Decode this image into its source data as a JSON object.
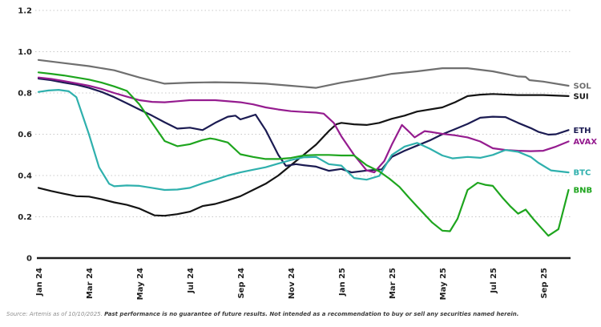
{
  "chart_data": {
    "type": "line",
    "title": "",
    "grid": "dotted-horizontal",
    "legend_position": "right-end-labels",
    "x_axis": {
      "unit": "month",
      "tick_labels": [
        "Jan 24",
        "Mar 24",
        "May 24",
        "Jul 24",
        "Sep 24",
        "Nov 24",
        "Jan 25",
        "Mar 25",
        "May 25",
        "Jul 25",
        "Sep 25"
      ],
      "tick_month_index": [
        0,
        2,
        4,
        6,
        8,
        10,
        12,
        14,
        16,
        18,
        20
      ]
    },
    "y_axis": {
      "tick_labels": [
        "1.2",
        "1.0",
        "0.8",
        "0.6",
        "0.4",
        "0.2",
        "0"
      ],
      "tick_values": [
        1.2,
        1.0,
        0.8,
        0.6,
        0.4,
        0.2,
        0
      ],
      "range": [
        0,
        1.2
      ]
    },
    "series": [
      {
        "name": "SOL",
        "color": "#6f6f6f",
        "points": [
          [
            0,
            0.96
          ],
          [
            1,
            0.945
          ],
          [
            2,
            0.93
          ],
          [
            3,
            0.91
          ],
          [
            4,
            0.875
          ],
          [
            5,
            0.845
          ],
          [
            6,
            0.85
          ],
          [
            7,
            0.852
          ],
          [
            8,
            0.85
          ],
          [
            9,
            0.845
          ],
          [
            10,
            0.835
          ],
          [
            11,
            0.825
          ],
          [
            12,
            0.85
          ],
          [
            13,
            0.87
          ],
          [
            14,
            0.893
          ],
          [
            15,
            0.905
          ],
          [
            16,
            0.92
          ],
          [
            17,
            0.92
          ],
          [
            18,
            0.905
          ],
          [
            19,
            0.88
          ],
          [
            19.3,
            0.878
          ],
          [
            19.45,
            0.862
          ],
          [
            20,
            0.855
          ],
          [
            21,
            0.835
          ]
        ]
      },
      {
        "name": "SUI",
        "color": "#141414",
        "points": [
          [
            0,
            0.34
          ],
          [
            0.5,
            0.325
          ],
          [
            1,
            0.312
          ],
          [
            1.5,
            0.3
          ],
          [
            2,
            0.298
          ],
          [
            2.5,
            0.285
          ],
          [
            3,
            0.27
          ],
          [
            3.5,
            0.258
          ],
          [
            4,
            0.24
          ],
          [
            4.6,
            0.207
          ],
          [
            5,
            0.205
          ],
          [
            5.5,
            0.213
          ],
          [
            6,
            0.225
          ],
          [
            6.5,
            0.252
          ],
          [
            7,
            0.262
          ],
          [
            7.5,
            0.28
          ],
          [
            8,
            0.3
          ],
          [
            8.5,
            0.33
          ],
          [
            9,
            0.36
          ],
          [
            9.5,
            0.4
          ],
          [
            10,
            0.45
          ],
          [
            10.5,
            0.5
          ],
          [
            11,
            0.55
          ],
          [
            11.5,
            0.615
          ],
          [
            11.8,
            0.648
          ],
          [
            12,
            0.655
          ],
          [
            12.5,
            0.648
          ],
          [
            13,
            0.645
          ],
          [
            13.5,
            0.655
          ],
          [
            14,
            0.675
          ],
          [
            14.5,
            0.69
          ],
          [
            15,
            0.71
          ],
          [
            16,
            0.73
          ],
          [
            16.5,
            0.755
          ],
          [
            17,
            0.785
          ],
          [
            17.5,
            0.792
          ],
          [
            18,
            0.795
          ],
          [
            19,
            0.79
          ],
          [
            20,
            0.79
          ],
          [
            21,
            0.785
          ]
        ]
      },
      {
        "name": "ETH",
        "color": "#1b1b52",
        "points": [
          [
            0,
            0.87
          ],
          [
            0.5,
            0.862
          ],
          [
            1,
            0.85
          ],
          [
            1.5,
            0.84
          ],
          [
            2,
            0.825
          ],
          [
            2.5,
            0.805
          ],
          [
            3,
            0.78
          ],
          [
            3.5,
            0.75
          ],
          [
            4,
            0.72
          ],
          [
            4.5,
            0.69
          ],
          [
            5,
            0.658
          ],
          [
            5.5,
            0.627
          ],
          [
            6,
            0.632
          ],
          [
            6.5,
            0.62
          ],
          [
            7,
            0.655
          ],
          [
            7.5,
            0.685
          ],
          [
            7.8,
            0.69
          ],
          [
            8,
            0.672
          ],
          [
            8.3,
            0.683
          ],
          [
            8.6,
            0.695
          ],
          [
            9,
            0.62
          ],
          [
            9.5,
            0.5
          ],
          [
            9.8,
            0.447
          ],
          [
            10.2,
            0.455
          ],
          [
            10.5,
            0.45
          ],
          [
            11,
            0.443
          ],
          [
            11.5,
            0.423
          ],
          [
            12,
            0.432
          ],
          [
            12.4,
            0.415
          ],
          [
            13,
            0.424
          ],
          [
            13.6,
            0.43
          ],
          [
            14,
            0.49
          ],
          [
            14.5,
            0.52
          ],
          [
            15,
            0.545
          ],
          [
            15.5,
            0.57
          ],
          [
            16,
            0.6
          ],
          [
            16.5,
            0.625
          ],
          [
            17,
            0.65
          ],
          [
            17.5,
            0.68
          ],
          [
            18,
            0.685
          ],
          [
            18.5,
            0.683
          ],
          [
            19,
            0.655
          ],
          [
            19.5,
            0.63
          ],
          [
            19.8,
            0.612
          ],
          [
            20.2,
            0.598
          ],
          [
            20.5,
            0.6
          ],
          [
            21,
            0.62
          ]
        ]
      },
      {
        "name": "AVAX",
        "color": "#951c8f",
        "points": [
          [
            0,
            0.875
          ],
          [
            0.5,
            0.868
          ],
          [
            1,
            0.858
          ],
          [
            1.5,
            0.847
          ],
          [
            2,
            0.835
          ],
          [
            2.5,
            0.82
          ],
          [
            3,
            0.8
          ],
          [
            3.5,
            0.782
          ],
          [
            4,
            0.765
          ],
          [
            4.5,
            0.757
          ],
          [
            5,
            0.755
          ],
          [
            5.5,
            0.76
          ],
          [
            6,
            0.765
          ],
          [
            7,
            0.765
          ],
          [
            8,
            0.755
          ],
          [
            8.5,
            0.745
          ],
          [
            9,
            0.73
          ],
          [
            9.5,
            0.72
          ],
          [
            10,
            0.712
          ],
          [
            10.5,
            0.708
          ],
          [
            11,
            0.705
          ],
          [
            11.3,
            0.7
          ],
          [
            11.7,
            0.655
          ],
          [
            12,
            0.59
          ],
          [
            12.5,
            0.5
          ],
          [
            13,
            0.425
          ],
          [
            13.3,
            0.415
          ],
          [
            13.7,
            0.47
          ],
          [
            14,
            0.55
          ],
          [
            14.4,
            0.645
          ],
          [
            14.7,
            0.61
          ],
          [
            14.9,
            0.585
          ],
          [
            15.3,
            0.615
          ],
          [
            15.6,
            0.61
          ],
          [
            16,
            0.602
          ],
          [
            16.5,
            0.595
          ],
          [
            17,
            0.585
          ],
          [
            17.5,
            0.565
          ],
          [
            18,
            0.532
          ],
          [
            18.5,
            0.524
          ],
          [
            19,
            0.52
          ],
          [
            19.5,
            0.518
          ],
          [
            20,
            0.52
          ],
          [
            20.5,
            0.54
          ],
          [
            21,
            0.565
          ]
        ]
      },
      {
        "name": "BTC",
        "color": "#2fb0ad",
        "points": [
          [
            0,
            0.805
          ],
          [
            0.4,
            0.812
          ],
          [
            0.8,
            0.815
          ],
          [
            1.2,
            0.808
          ],
          [
            1.5,
            0.78
          ],
          [
            2,
            0.6
          ],
          [
            2.4,
            0.44
          ],
          [
            2.8,
            0.36
          ],
          [
            3,
            0.348
          ],
          [
            3.5,
            0.352
          ],
          [
            4,
            0.35
          ],
          [
            4.5,
            0.34
          ],
          [
            5,
            0.33
          ],
          [
            5.5,
            0.332
          ],
          [
            6,
            0.34
          ],
          [
            6.5,
            0.362
          ],
          [
            7,
            0.38
          ],
          [
            7.5,
            0.4
          ],
          [
            8,
            0.415
          ],
          [
            8.5,
            0.428
          ],
          [
            9,
            0.44
          ],
          [
            9.5,
            0.458
          ],
          [
            10,
            0.475
          ],
          [
            10.5,
            0.488
          ],
          [
            11,
            0.49
          ],
          [
            11.5,
            0.455
          ],
          [
            12,
            0.448
          ],
          [
            12.5,
            0.388
          ],
          [
            13,
            0.38
          ],
          [
            13.5,
            0.398
          ],
          [
            14,
            0.5
          ],
          [
            14.5,
            0.54
          ],
          [
            15,
            0.558
          ],
          [
            15.5,
            0.53
          ],
          [
            16,
            0.497
          ],
          [
            16.4,
            0.483
          ],
          [
            17,
            0.49
          ],
          [
            17.5,
            0.486
          ],
          [
            18,
            0.5
          ],
          [
            18.5,
            0.524
          ],
          [
            19,
            0.515
          ],
          [
            19.5,
            0.49
          ],
          [
            19.8,
            0.462
          ],
          [
            20.3,
            0.425
          ],
          [
            21,
            0.415
          ]
        ]
      },
      {
        "name": "BNB",
        "color": "#1ea51e",
        "points": [
          [
            0,
            0.9
          ],
          [
            0.5,
            0.893
          ],
          [
            1,
            0.885
          ],
          [
            1.5,
            0.875
          ],
          [
            2,
            0.865
          ],
          [
            2.5,
            0.85
          ],
          [
            3,
            0.832
          ],
          [
            3.5,
            0.81
          ],
          [
            4,
            0.745
          ],
          [
            4.5,
            0.655
          ],
          [
            5,
            0.567
          ],
          [
            5.5,
            0.542
          ],
          [
            6,
            0.552
          ],
          [
            6.5,
            0.572
          ],
          [
            6.8,
            0.58
          ],
          [
            7,
            0.576
          ],
          [
            7.5,
            0.56
          ],
          [
            8,
            0.503
          ],
          [
            8.5,
            0.49
          ],
          [
            9,
            0.48
          ],
          [
            9.5,
            0.48
          ],
          [
            10,
            0.485
          ],
          [
            10.5,
            0.497
          ],
          [
            11,
            0.5
          ],
          [
            11.5,
            0.5
          ],
          [
            12,
            0.497
          ],
          [
            12.5,
            0.497
          ],
          [
            13,
            0.45
          ],
          [
            13.5,
            0.42
          ],
          [
            13.9,
            0.385
          ],
          [
            14.3,
            0.345
          ],
          [
            14.7,
            0.29
          ],
          [
            15,
            0.25
          ],
          [
            15.6,
            0.172
          ],
          [
            16,
            0.133
          ],
          [
            16.3,
            0.13
          ],
          [
            16.6,
            0.19
          ],
          [
            17,
            0.33
          ],
          [
            17.4,
            0.365
          ],
          [
            17.7,
            0.355
          ],
          [
            18,
            0.35
          ],
          [
            18.4,
            0.29
          ],
          [
            18.7,
            0.25
          ],
          [
            19,
            0.215
          ],
          [
            19.3,
            0.235
          ],
          [
            19.6,
            0.19
          ],
          [
            20,
            0.135
          ],
          [
            20.2,
            0.108
          ],
          [
            20.6,
            0.14
          ],
          [
            21,
            0.33
          ]
        ]
      }
    ]
  },
  "footer": {
    "source_prefix": "Source: Artemis as of 10/10/2025.",
    "disclaimer": "Past performance is no guarantee of future results. Not intended as a recommendation to buy or sell any securities named herein."
  },
  "colors": {
    "axis": "#1e1e1e",
    "tick_text": "#1e1e1e",
    "grid": "#c8c8c8",
    "background": "#ffffff"
  }
}
